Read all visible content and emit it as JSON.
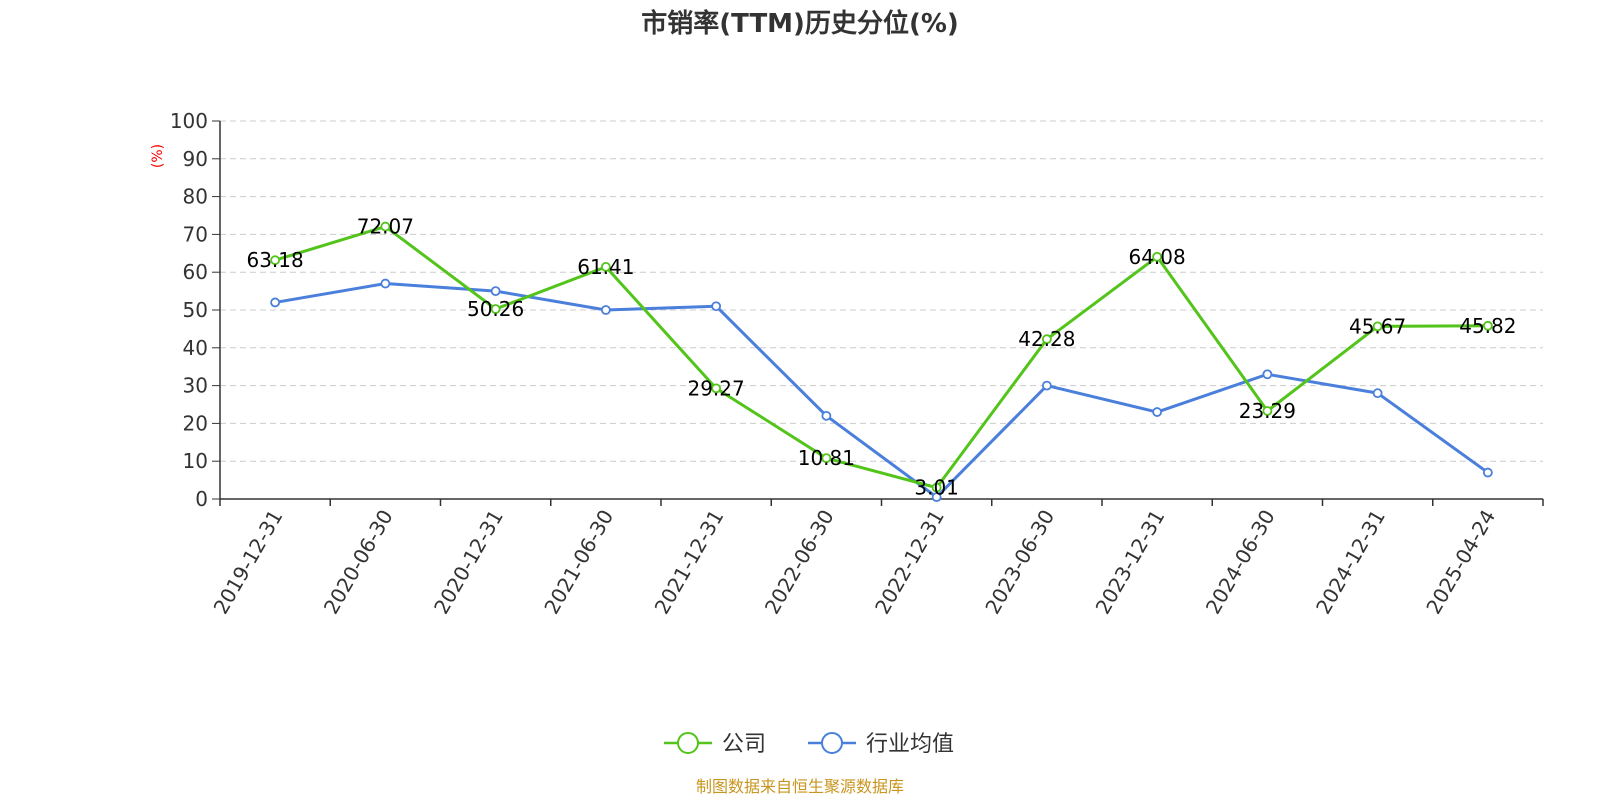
{
  "chart_data": {
    "type": "line",
    "title": "市销率(TTM)历史分位(%)",
    "ylabel": "(%)",
    "ylim": [
      0,
      100
    ],
    "yticks": [
      0,
      10,
      20,
      30,
      40,
      50,
      60,
      70,
      80,
      90,
      100
    ],
    "grid": true,
    "categories": [
      "2019-12-31",
      "2020-06-30",
      "2020-12-31",
      "2021-06-30",
      "2021-12-31",
      "2022-06-30",
      "2022-12-31",
      "2023-06-30",
      "2023-12-31",
      "2024-06-30",
      "2024-12-31",
      "2025-04-24"
    ],
    "series": [
      {
        "name": "公司",
        "color": "#52c41a",
        "values": [
          63.18,
          72.07,
          50.26,
          61.41,
          29.27,
          10.81,
          3.01,
          42.28,
          64.08,
          23.29,
          45.67,
          45.82
        ],
        "labels": [
          "63.18",
          "72.07",
          "50.26",
          "61.41",
          "29.27",
          "10.81",
          "3.01",
          "42.28",
          "64.08",
          "23.29",
          "45.67",
          "45.82"
        ]
      },
      {
        "name": "行业均值",
        "color": "#4a7fdb",
        "values": [
          52,
          57,
          55,
          50,
          51,
          22,
          0.5,
          30,
          23,
          33,
          28,
          7
        ]
      }
    ],
    "legend_position": "bottom-center"
  },
  "source": "制图数据来自恒生聚源数据库",
  "colors": {
    "title": "#333333",
    "ylabel": "#ff0000",
    "source": "#c8961e",
    "grid": "#cccccc",
    "axis": "#333333"
  }
}
